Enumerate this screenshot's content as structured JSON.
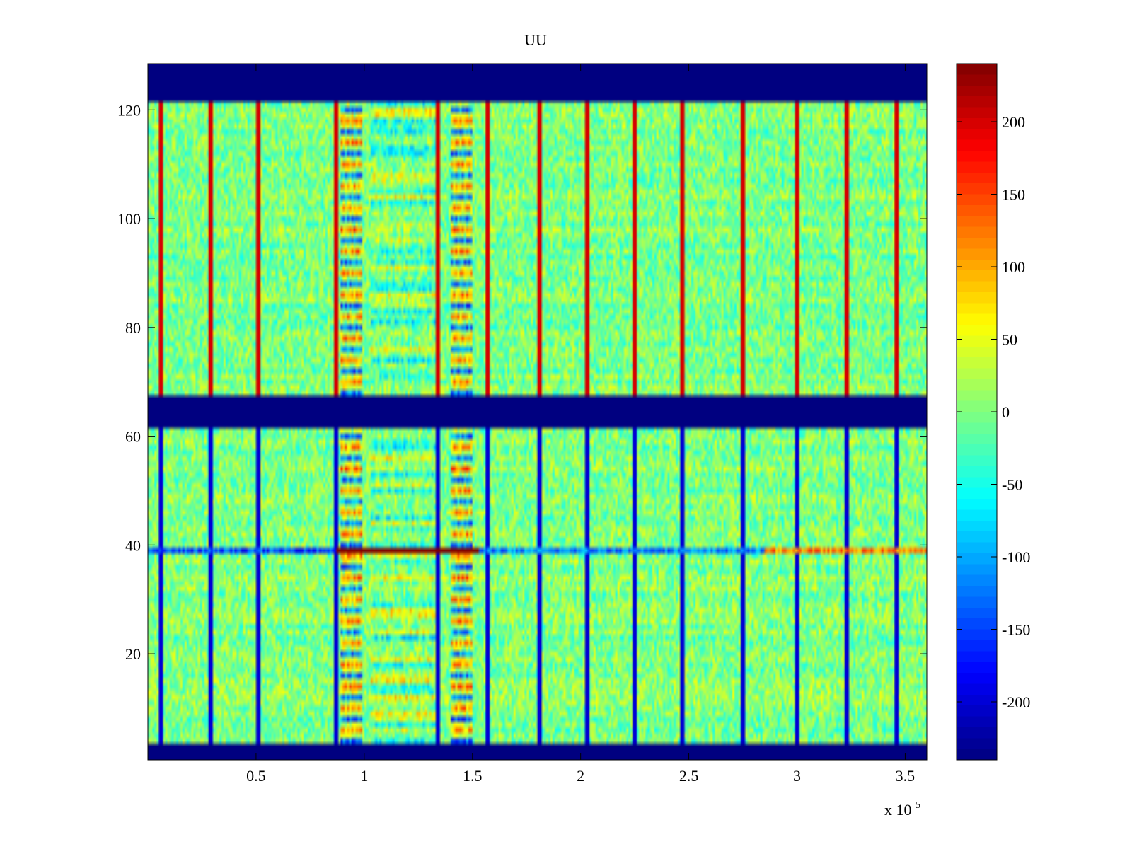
{
  "chart_data": {
    "type": "heatmap",
    "title": "UU",
    "xlabel": "",
    "ylabel": "",
    "x_multiplier_label": {
      "base": "x 10",
      "exponent": "5"
    },
    "xlim": [
      0,
      3.6
    ],
    "ylim": [
      0.5,
      128.5
    ],
    "x_ticks": [
      0.5,
      1,
      1.5,
      2,
      2.5,
      3,
      3.5
    ],
    "x_tick_labels": [
      "0.5",
      "1",
      "1.5",
      "2",
      "2.5",
      "3",
      "3.5"
    ],
    "y_ticks": [
      20,
      40,
      60,
      80,
      100,
      120
    ],
    "y_tick_labels": [
      "20",
      "40",
      "60",
      "80",
      "100",
      "120"
    ],
    "clim": [
      -240,
      240
    ],
    "colormap": "jet",
    "colorbar": {
      "ticks": [
        200,
        150,
        100,
        50,
        0,
        -50,
        -100,
        -150,
        -200
      ],
      "tick_labels": [
        "200",
        "150",
        "100",
        "50",
        "0",
        "-50",
        "-100",
        "-150",
        "-200"
      ]
    },
    "rows": 128,
    "background_level": 0,
    "noise_amplitude": 45,
    "masked_row_ranges": [
      [
        1,
        3
      ],
      [
        62,
        67
      ],
      [
        122,
        128
      ]
    ],
    "event_columns_x": [
      0.06,
      0.29,
      0.51,
      0.87,
      1.34,
      1.57,
      1.81,
      2.03,
      2.25,
      2.47,
      2.75,
      3.0,
      3.23,
      3.46
    ],
    "bands": [
      {
        "x_range": [
          0.89,
          0.99
        ],
        "mode": "alternating-rows"
      },
      {
        "x_range": [
          1.4,
          1.5
        ],
        "mode": "alternating-rows"
      },
      {
        "x_range": [
          1.03,
          1.33
        ],
        "mode": "weak-rows"
      }
    ],
    "row_39_segments": [
      {
        "x_range": [
          0.0,
          0.87
        ],
        "value": -150
      },
      {
        "x_range": [
          0.87,
          1.53
        ],
        "value": 240
      },
      {
        "x_range": [
          1.53,
          2.85
        ],
        "value": -120
      },
      {
        "x_range": [
          2.85,
          3.6
        ],
        "value": 120
      }
    ]
  }
}
